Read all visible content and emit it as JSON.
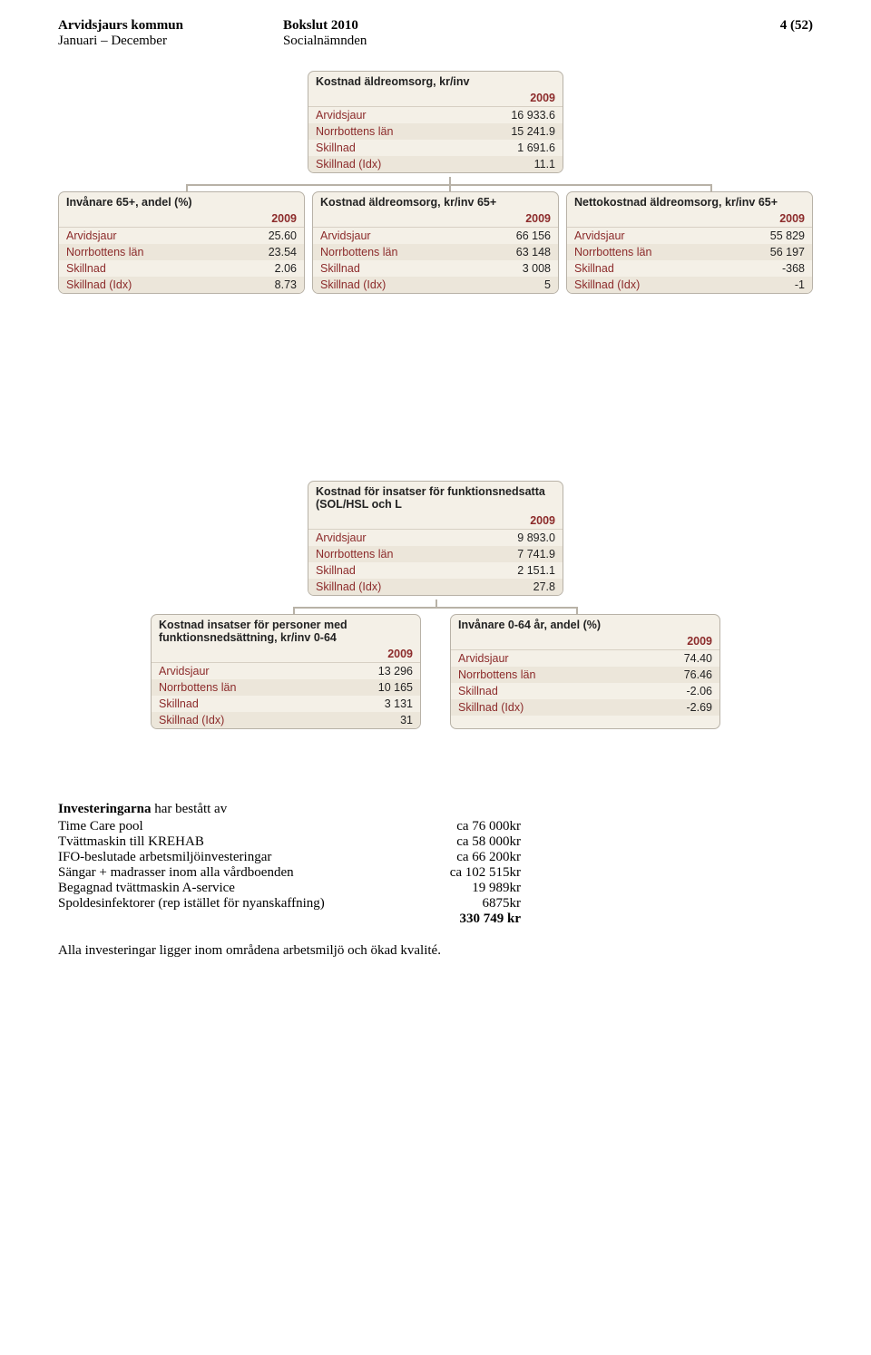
{
  "header": {
    "org_bold": "Arvidsjaurs kommun",
    "org_sub": "Januari – December",
    "center_bold": "Bokslut 2010",
    "center_sub": "Socialnämnden",
    "page_num": "4 (52)"
  },
  "top_card": {
    "title": "Kostnad äldreomsorg, kr/inv",
    "year": "2009",
    "rows": [
      {
        "label": "Arvidsjaur",
        "val": "16 933.6"
      },
      {
        "label": "Norrbottens län",
        "val": "15 241.9"
      },
      {
        "label": "Skillnad",
        "val": "1 691.6"
      },
      {
        "label": "Skillnad (Idx)",
        "val": "11.1"
      }
    ]
  },
  "row1": [
    {
      "title": "Invånare 65+, andel (%)",
      "year": "2009",
      "rows": [
        {
          "label": "Arvidsjaur",
          "val": "25.60"
        },
        {
          "label": "Norrbottens län",
          "val": "23.54"
        },
        {
          "label": "Skillnad",
          "val": "2.06"
        },
        {
          "label": "Skillnad (Idx)",
          "val": "8.73"
        }
      ]
    },
    {
      "title": "Kostnad äldreomsorg, kr/inv 65+",
      "year": "2009",
      "rows": [
        {
          "label": "Arvidsjaur",
          "val": "66 156"
        },
        {
          "label": "Norrbottens län",
          "val": "63 148"
        },
        {
          "label": "Skillnad",
          "val": "3 008"
        },
        {
          "label": "Skillnad (Idx)",
          "val": "5"
        }
      ]
    },
    {
      "title": "Nettokostnad äldreomsorg, kr/inv 65+",
      "year": "2009",
      "rows": [
        {
          "label": "Arvidsjaur",
          "val": "55 829"
        },
        {
          "label": "Norrbottens län",
          "val": "56 197"
        },
        {
          "label": "Skillnad",
          "val": "-368"
        },
        {
          "label": "Skillnad (Idx)",
          "val": "-1"
        }
      ]
    }
  ],
  "mid_card": {
    "title": "Kostnad för insatser för funktionsnedsatta (SOL/HSL och L",
    "year": "2009",
    "rows": [
      {
        "label": "Arvidsjaur",
        "val": "9 893.0"
      },
      {
        "label": "Norrbottens län",
        "val": "7 741.9"
      },
      {
        "label": "Skillnad",
        "val": "2 151.1"
      },
      {
        "label": "Skillnad (Idx)",
        "val": "27.8"
      }
    ]
  },
  "row2": [
    {
      "title": "Kostnad insatser för personer med funktionsnedsättning, kr/inv 0-64",
      "year": "2009",
      "rows": [
        {
          "label": "Arvidsjaur",
          "val": "13 296"
        },
        {
          "label": "Norrbottens län",
          "val": "10 165"
        },
        {
          "label": "Skillnad",
          "val": "3 131"
        },
        {
          "label": "Skillnad (Idx)",
          "val": "31"
        }
      ]
    },
    {
      "title": "Invånare 0-64 år, andel (%)",
      "year": "2009",
      "rows": [
        {
          "label": "Arvidsjaur",
          "val": "74.40"
        },
        {
          "label": "Norrbottens län",
          "val": "76.46"
        },
        {
          "label": "Skillnad",
          "val": "-2.06"
        },
        {
          "label": "Skillnad (Idx)",
          "val": "-2.69"
        }
      ]
    }
  ],
  "invest": {
    "intro_prefix": "Investeringarna",
    "intro_rest": " har bestått av",
    "items": [
      {
        "desc": "Time Care pool",
        "amt": "ca 76 000kr"
      },
      {
        "desc": "Tvättmaskin till KREHAB",
        "amt": "ca 58 000kr"
      },
      {
        "desc": "IFO-beslutade arbetsmiljöinvesteringar",
        "amt": "ca 66 200kr"
      },
      {
        "desc": "Sängar + madrasser inom alla vårdboenden",
        "amt": "ca 102 515kr"
      },
      {
        "desc": "Begagnad tvättmaskin A-service",
        "amt": "19 989kr"
      },
      {
        "desc": "Spoldesinfektorer (rep istället för nyanskaffning)",
        "amt": "6875kr"
      }
    ],
    "total": "330 749 kr",
    "final": "Alla investeringar ligger inom områdena arbetsmiljö och ökad kvalité."
  }
}
